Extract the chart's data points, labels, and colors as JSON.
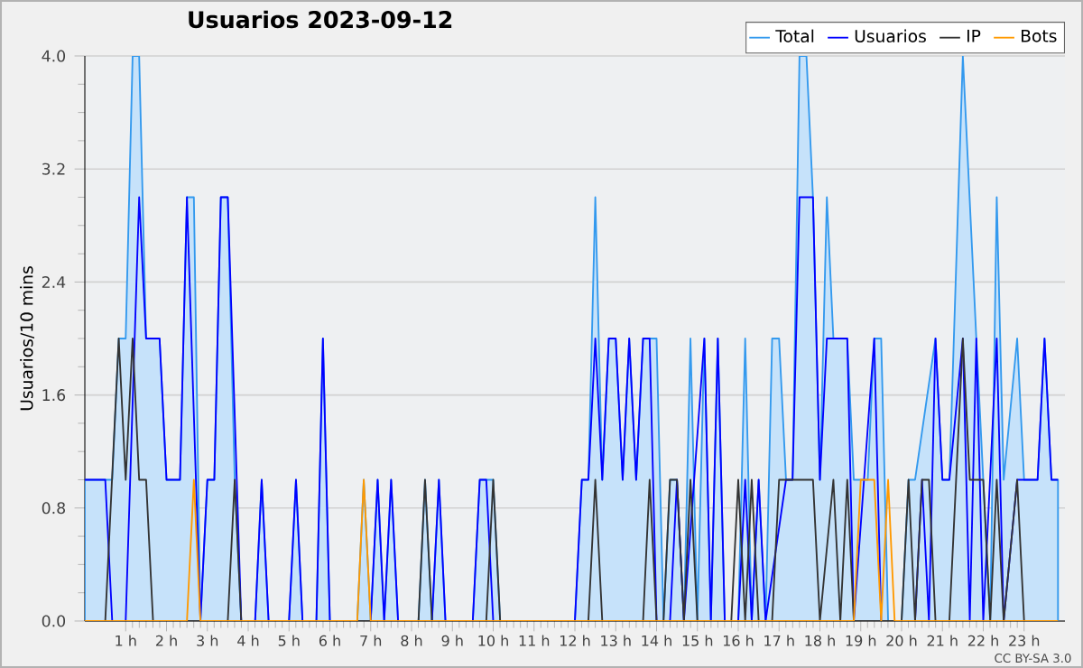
{
  "chart_data": {
    "type": "line",
    "title": "Usuarios  2023-09-12",
    "ylabel": "Usuarios/10 mins",
    "annotations": [
      "CC BY-SA 3.0"
    ],
    "xlim": [
      0,
      24
    ],
    "ylim": [
      0,
      4
    ],
    "xticks": [
      {
        "value": 1,
        "label": "1 h"
      },
      {
        "value": 2,
        "label": "2 h"
      },
      {
        "value": 3,
        "label": "3 h"
      },
      {
        "value": 4,
        "label": "4 h"
      },
      {
        "value": 5,
        "label": "5 h"
      },
      {
        "value": 6,
        "label": "6 h"
      },
      {
        "value": 7,
        "label": "7 h"
      },
      {
        "value": 8,
        "label": "8 h"
      },
      {
        "value": 9,
        "label": "9 h"
      },
      {
        "value": 10,
        "label": "10 h"
      },
      {
        "value": 11,
        "label": "11 h"
      },
      {
        "value": 12,
        "label": "12 h"
      },
      {
        "value": 13,
        "label": "13 h"
      },
      {
        "value": 14,
        "label": "14 h"
      },
      {
        "value": 15,
        "label": "15 h"
      },
      {
        "value": 16,
        "label": "16 h"
      },
      {
        "value": 17,
        "label": "17 h"
      },
      {
        "value": 18,
        "label": "18 h"
      },
      {
        "value": 19,
        "label": "19 h"
      },
      {
        "value": 20,
        "label": "20 h"
      },
      {
        "value": 21,
        "label": "21 h"
      },
      {
        "value": 22,
        "label": "22 h"
      },
      {
        "value": 23,
        "label": "23 h"
      }
    ],
    "yticks": [
      {
        "value": 0,
        "label": "0.0"
      },
      {
        "value": 0.8,
        "label": "0.8"
      },
      {
        "value": 1.6,
        "label": "1.6"
      },
      {
        "value": 2.4,
        "label": "2.4"
      },
      {
        "value": 3.2,
        "label": "3.2"
      },
      {
        "value": 4,
        "label": "4.0"
      }
    ],
    "grid": "y",
    "legend": "top right",
    "series": [
      {
        "name": "Total",
        "type": "area",
        "color": "#c6e2fa",
        "x": [
          0,
          0.67,
          0.83,
          1,
          1.17,
          1.33,
          1.5,
          1.83,
          2,
          2.33,
          2.5,
          2.67,
          2.83,
          3,
          3.17,
          3.33,
          3.5,
          3.67,
          3.83,
          4.17,
          4.33,
          4.5,
          5,
          5.17,
          5.33,
          5.67,
          5.83,
          6,
          6.67,
          6.83,
          7,
          7.17,
          7.33,
          7.5,
          7.67,
          8.17,
          8.33,
          8.5,
          8.67,
          8.83,
          9.5,
          9.67,
          10,
          10.17,
          12,
          12.17,
          12.33,
          12.5,
          12.67,
          12.83,
          13,
          13.17,
          13.33,
          13.5,
          13.67,
          14,
          14.17,
          14.33,
          14.5,
          14.67,
          14.83,
          15,
          15.17,
          15.33,
          15.5,
          15.67,
          16,
          16.17,
          16.33,
          16.5,
          16.67,
          16.83,
          17,
          17.17,
          17.33,
          17.5,
          17.67,
          17.83,
          18,
          18.17,
          18.33,
          18.67,
          18.83,
          19.17,
          19.33,
          19.5,
          19.67,
          20,
          20.17,
          20.33,
          20.83,
          21,
          21.17,
          21.5,
          21.83,
          22,
          22.17,
          22.33,
          22.5,
          22.83,
          23,
          23.33,
          23.5,
          23.67,
          23.83
        ],
        "values": [
          1,
          1,
          2,
          2,
          4,
          4,
          2,
          2,
          1,
          1,
          3,
          3,
          0,
          1,
          1,
          3,
          3,
          1,
          0,
          0,
          1,
          0,
          0,
          1,
          0,
          0,
          2,
          0,
          0,
          1,
          0,
          1,
          0,
          1,
          0,
          0,
          1,
          0,
          1,
          0,
          0,
          1,
          1,
          0,
          0,
          1,
          1,
          3,
          1,
          2,
          2,
          1,
          2,
          1,
          2,
          2,
          0,
          1,
          1,
          0,
          2,
          0,
          2,
          0,
          2,
          0,
          0,
          2,
          0,
          1,
          0,
          2,
          2,
          1,
          1,
          4,
          4,
          3,
          1,
          3,
          2,
          2,
          1,
          1,
          2,
          2,
          0,
          0,
          1,
          1,
          2,
          1,
          1,
          4,
          2,
          1,
          0,
          3,
          1,
          2,
          1,
          1,
          2,
          1,
          1
        ]
      },
      {
        "name": "Usuarios",
        "color": "#0000ff",
        "x": [
          0,
          0.5,
          0.67,
          1,
          1.33,
          1.5,
          1.83,
          2,
          2.33,
          2.5,
          2.83,
          3,
          3.17,
          3.33,
          3.5,
          3.83,
          4.17,
          4.33,
          4.5,
          5,
          5.17,
          5.33,
          5.67,
          5.83,
          6,
          7,
          7.17,
          7.33,
          7.5,
          7.67,
          8.5,
          8.67,
          8.83,
          9.5,
          9.67,
          9.83,
          10,
          12,
          12.17,
          12.33,
          12.5,
          12.67,
          12.83,
          13,
          13.17,
          13.33,
          13.5,
          13.67,
          13.83,
          14,
          14.33,
          14.5,
          14.67,
          15.17,
          15.33,
          15.5,
          15.67,
          16,
          16.17,
          16.33,
          16.5,
          16.67,
          17.17,
          17.33,
          17.5,
          17.83,
          18,
          18.17,
          18.67,
          18.83,
          19.33,
          19.5,
          20.33,
          20.5,
          20.67,
          20.83,
          21,
          21.17,
          21.5,
          21.67,
          21.83,
          22,
          22.33,
          22.5,
          22.83,
          23.33,
          23.5,
          23.67,
          23.83
        ],
        "values": [
          1,
          1,
          0,
          0,
          3,
          2,
          2,
          1,
          1,
          3,
          0,
          1,
          1,
          3,
          3,
          0,
          0,
          1,
          0,
          0,
          1,
          0,
          0,
          2,
          0,
          0,
          1,
          0,
          1,
          0,
          0,
          1,
          0,
          0,
          1,
          1,
          0,
          0,
          1,
          1,
          2,
          1,
          2,
          2,
          1,
          2,
          1,
          2,
          2,
          0,
          0,
          1,
          0,
          2,
          0,
          2,
          0,
          0,
          1,
          0,
          1,
          0,
          1,
          1,
          3,
          3,
          1,
          2,
          2,
          0,
          2,
          0,
          0,
          1,
          0,
          2,
          1,
          1,
          2,
          0,
          2,
          0,
          2,
          0,
          1,
          1,
          2,
          1,
          1
        ]
      },
      {
        "name": "IP",
        "color": "#333333",
        "x": [
          0,
          0.5,
          0.83,
          1,
          1.17,
          1.33,
          1.5,
          1.67,
          3.5,
          3.67,
          3.83,
          8.17,
          8.33,
          8.5,
          9.83,
          10,
          10.17,
          12.33,
          12.5,
          12.67,
          13.67,
          13.83,
          14,
          14.17,
          14.33,
          14.5,
          14.67,
          14.83,
          15,
          15.83,
          16,
          16.17,
          16.33,
          16.5,
          16.83,
          17,
          17.83,
          18,
          18.33,
          18.5,
          18.67,
          18.83,
          20,
          20.17,
          20.33,
          20.5,
          20.67,
          20.83,
          21.17,
          21.5,
          21.67,
          22,
          22.17,
          22.33,
          22.5,
          22.83,
          23,
          23.83
        ],
        "values": [
          0,
          0,
          2,
          1,
          2,
          1,
          1,
          0,
          0,
          1,
          0,
          0,
          1,
          0,
          0,
          1,
          0,
          0,
          1,
          0,
          0,
          1,
          0,
          0,
          1,
          1,
          0,
          1,
          0,
          0,
          1,
          0,
          1,
          0,
          0,
          1,
          1,
          0,
          1,
          0,
          1,
          0,
          0,
          1,
          0,
          1,
          1,
          0,
          0,
          2,
          1,
          1,
          0,
          1,
          0,
          1,
          0,
          0
        ]
      },
      {
        "name": "Bots",
        "color": "#ff9900",
        "x": [
          0,
          2.5,
          2.67,
          2.83,
          6.67,
          6.83,
          7,
          18.83,
          19,
          19.33,
          19.5,
          19.67,
          19.83,
          23.83
        ],
        "values": [
          0,
          0,
          1,
          0,
          0,
          1,
          0,
          0,
          1,
          1,
          0,
          1,
          0,
          0
        ]
      }
    ]
  }
}
